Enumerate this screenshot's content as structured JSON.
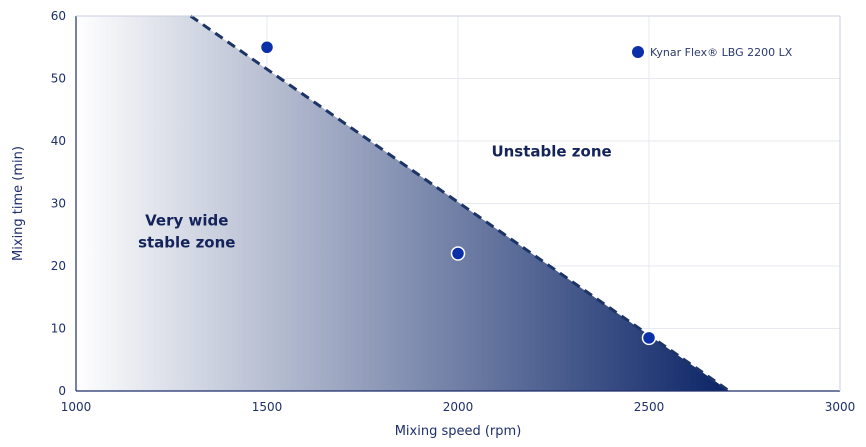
{
  "chart_data": {
    "type": "scatter",
    "xlabel": "Mixing speed (rpm)",
    "ylabel": "Mixing time (min)",
    "xlim": [
      1000,
      3000
    ],
    "ylim": [
      0,
      60
    ],
    "xticks": [
      1000,
      1500,
      2000,
      2500,
      3000
    ],
    "yticks": [
      0,
      10,
      20,
      30,
      40,
      50,
      60
    ],
    "grid": true,
    "legend_position": "top-right",
    "series": [
      {
        "name": "Kynar Flex® LBG 2200 LX",
        "color": "#0b2fa8",
        "points": [
          {
            "x": 1500,
            "y": 55
          },
          {
            "x": 2000,
            "y": 22
          },
          {
            "x": 2500,
            "y": 8.5
          }
        ]
      }
    ],
    "boundary": {
      "style": "dashed",
      "points": [
        {
          "x": 1300,
          "y": 60
        },
        {
          "x": 2710,
          "y": 0
        }
      ]
    },
    "annotations": [
      {
        "text": "Very wide",
        "x": 1290,
        "y": 26.5
      },
      {
        "text": "stable zone",
        "x": 1290,
        "y": 23.0
      },
      {
        "text": "Unstable zone",
        "x": 2245,
        "y": 37.5
      }
    ],
    "colors": {
      "stable_fill_start": "#ffffff",
      "stable_fill_end": "#0b2466",
      "boundary": "#1d3466",
      "axis": "#1f2f6b",
      "grid": "#e6e9f0"
    }
  }
}
